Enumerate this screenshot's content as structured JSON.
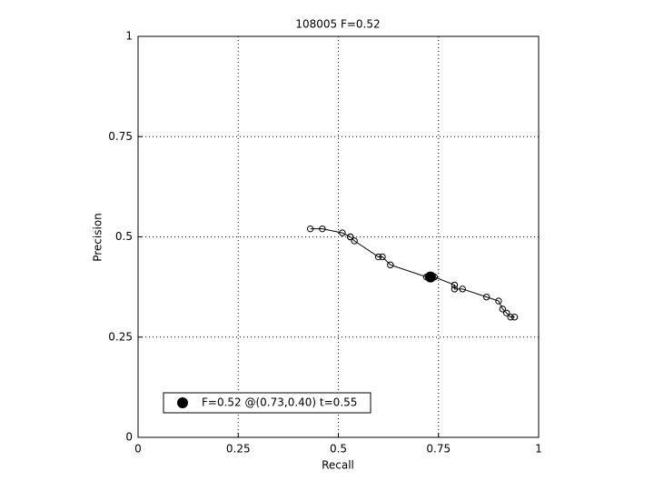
{
  "chart_data": {
    "type": "line",
    "title": "108005 F=0.52",
    "xlabel": "Recall",
    "ylabel": "Precision",
    "x": [
      0.43,
      0.46,
      0.51,
      0.53,
      0.53,
      0.54,
      0.6,
      0.61,
      0.63,
      0.72,
      0.74,
      0.79,
      0.79,
      0.81,
      0.87,
      0.9,
      0.91,
      0.92,
      0.93,
      0.94
    ],
    "values": [
      0.52,
      0.52,
      0.51,
      0.5,
      0.5,
      0.49,
      0.45,
      0.45,
      0.43,
      0.4,
      0.4,
      0.38,
      0.37,
      0.37,
      0.35,
      0.34,
      0.32,
      0.31,
      0.3,
      0.3
    ],
    "color": "#000000",
    "best_point": {
      "name": "F=0.52 @(0.73,0.40) t=0.55",
      "x": 0.73,
      "y": 0.4
    },
    "xlim": [
      0,
      1
    ],
    "ylim": [
      0,
      1
    ],
    "xticks": [
      0,
      0.25,
      0.5,
      0.75,
      1
    ],
    "yticks": [
      0,
      0.25,
      0.5,
      0.75,
      1
    ],
    "grid": true
  }
}
